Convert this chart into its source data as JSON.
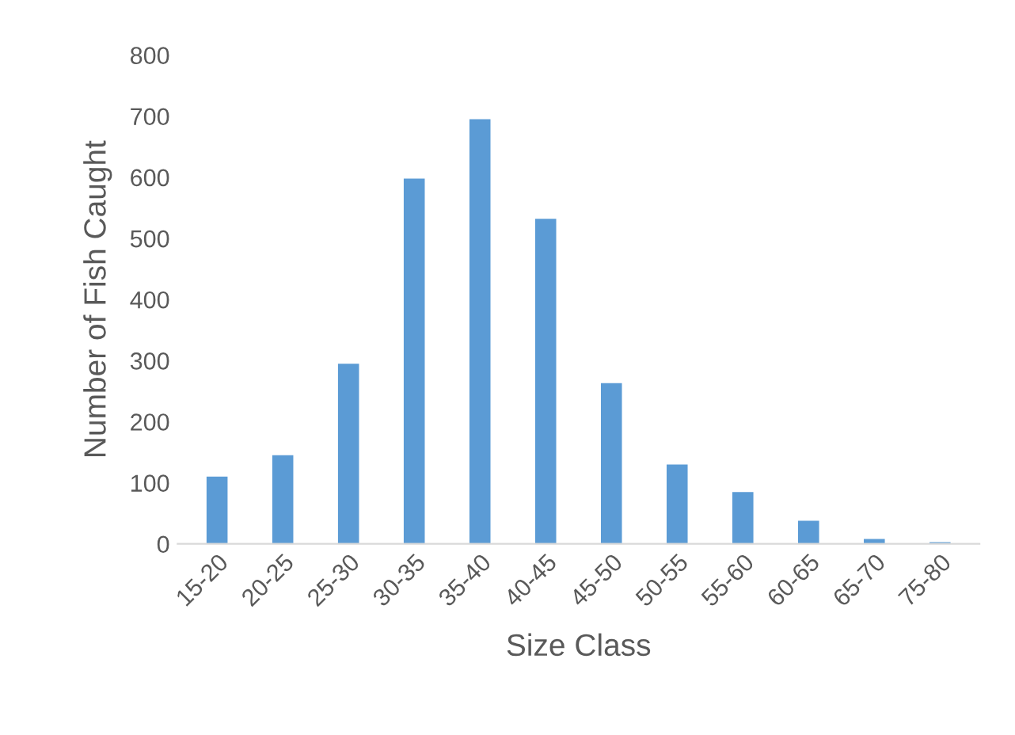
{
  "chart_data": {
    "type": "bar",
    "xlabel": "Size Class",
    "ylabel": "Number of Fish Caught",
    "categories": [
      "15-20",
      "20-25",
      "25-30",
      "30-35",
      "35-40",
      "40-45",
      "45-50",
      "50-55",
      "55-60",
      "60-65",
      "65-70",
      "75-80"
    ],
    "values": [
      110,
      145,
      295,
      598,
      695,
      532,
      263,
      130,
      85,
      38,
      8,
      3
    ],
    "color": "#5b9bd5",
    "ylim": [
      0,
      800
    ],
    "yticks": [
      0,
      100,
      200,
      300,
      400,
      500,
      600,
      700,
      800
    ],
    "grid": false,
    "legend": false
  }
}
